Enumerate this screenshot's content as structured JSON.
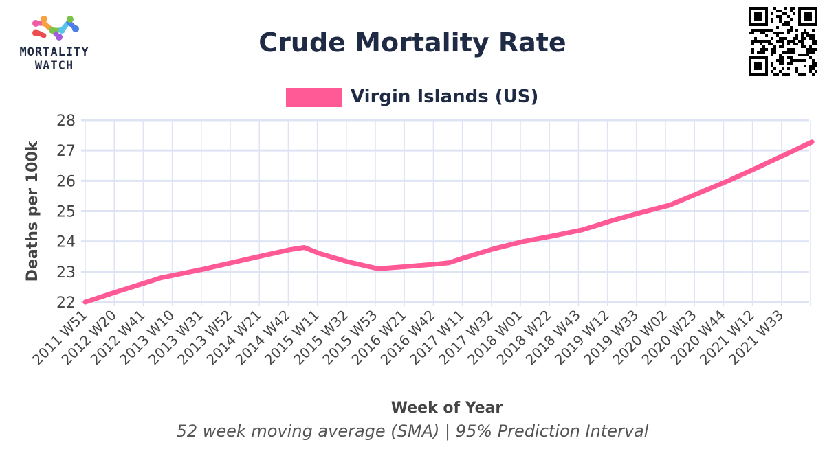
{
  "brand": {
    "logo_line1": "MORTALITY",
    "logo_line2": "WATCH"
  },
  "header": {
    "title": "Crude Mortality Rate"
  },
  "footnote": "52 week moving average (SMA) | 95% Prediction Interval",
  "colors": {
    "series": "#ff5a96",
    "text": "#1f2a44",
    "grid": "#dfe4f5",
    "axis_text": "#444444"
  },
  "chart_data": {
    "type": "line",
    "title": "Crude Mortality Rate",
    "xlabel": "Week of Year",
    "ylabel": "Deaths per 100k",
    "ylim": [
      22,
      28
    ],
    "yticks": [
      "22",
      "23",
      "24",
      "25",
      "26",
      "27",
      "28"
    ],
    "xticks": [
      "2011 W51",
      "2012 W20",
      "2012 W41",
      "2013 W10",
      "2013 W31",
      "2013 W52",
      "2014 W21",
      "2014 W42",
      "2015 W11",
      "2015 W32",
      "2015 W53",
      "2016 W21",
      "2016 W42",
      "2017 W11",
      "2017 W32",
      "2018 W01",
      "2018 W22",
      "2018 W43",
      "2019 W12",
      "2019 W33",
      "2020 W02",
      "2020 W23",
      "2020 W44",
      "2021 W12",
      "2021 W33"
    ],
    "grid": true,
    "legend_position": "top-center",
    "series": [
      {
        "name": "Virgin Islands (US)",
        "color": "#ff5a96",
        "points": [
          {
            "x": "2011 W51",
            "y": 22.0
          },
          {
            "x": "2012 W20",
            "y": 22.32
          },
          {
            "x": "2012 W41",
            "y": 22.62
          },
          {
            "x": "2013 W01",
            "y": 22.8
          },
          {
            "x": "2013 W31",
            "y": 23.08
          },
          {
            "x": "2013 W52",
            "y": 23.3
          },
          {
            "x": "2014 W21",
            "y": 23.52
          },
          {
            "x": "2014 W42",
            "y": 23.73
          },
          {
            "x": "2014 W52",
            "y": 23.8
          },
          {
            "x": "2015 W11",
            "y": 23.6
          },
          {
            "x": "2015 W32",
            "y": 23.32
          },
          {
            "x": "2015 W53",
            "y": 23.1
          },
          {
            "x": "2016 W21",
            "y": 23.17
          },
          {
            "x": "2016 W42",
            "y": 23.25
          },
          {
            "x": "2016 W52",
            "y": 23.3
          },
          {
            "x": "2017 W11",
            "y": 23.47
          },
          {
            "x": "2017 W32",
            "y": 23.76
          },
          {
            "x": "2018 W01",
            "y": 24.0
          },
          {
            "x": "2018 W22",
            "y": 24.18
          },
          {
            "x": "2018 W43",
            "y": 24.38
          },
          {
            "x": "2019 W01",
            "y": 24.52
          },
          {
            "x": "2019 W12",
            "y": 24.68
          },
          {
            "x": "2019 W33",
            "y": 24.95
          },
          {
            "x": "2020 W02",
            "y": 25.2
          },
          {
            "x": "2020 W23",
            "y": 25.6
          },
          {
            "x": "2020 W44",
            "y": 26.0
          },
          {
            "x": "2021 W12",
            "y": 26.42
          },
          {
            "x": "2021 W33",
            "y": 26.87
          },
          {
            "x": "2021 W52",
            "y": 27.28
          }
        ]
      }
    ]
  }
}
